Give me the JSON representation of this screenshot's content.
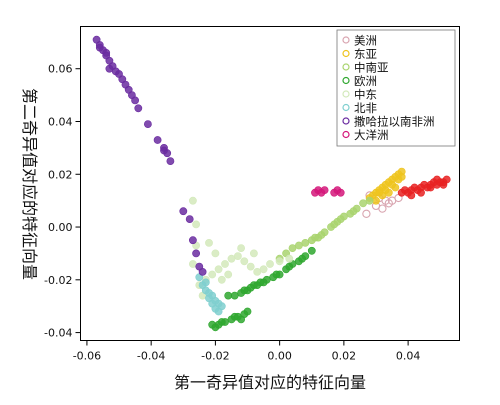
{
  "chart_data": {
    "type": "scatter",
    "xlabel": "第一奇异值对应的特征向量",
    "ylabel": "第二奇异值对应的特征向量",
    "xlim": [
      -0.062,
      0.056
    ],
    "ylim": [
      -0.043,
      0.076
    ],
    "x_ticks": [
      -0.06,
      -0.04,
      -0.02,
      0.0,
      0.02,
      0.04
    ],
    "x_tick_labels": [
      "-0.06",
      "-0.04",
      "-0.02",
      "0.00",
      "0.02",
      "0.04"
    ],
    "y_ticks": [
      -0.04,
      -0.02,
      0.0,
      0.02,
      0.04,
      0.06
    ],
    "y_tick_labels": [
      "-0.04",
      "-0.02",
      "0.00",
      "0.02",
      "0.04",
      "0.06"
    ],
    "grid": false,
    "legend_position": "top-right",
    "series": [
      {
        "name": "美洲",
        "color": "#d9a5b0",
        "marker": "open-circle",
        "points": [
          [
            0.028,
            0.012
          ],
          [
            0.031,
            0.011
          ],
          [
            0.033,
            0.01
          ],
          [
            0.035,
            0.01
          ],
          [
            0.037,
            0.011
          ],
          [
            0.03,
            0.008
          ],
          [
            0.027,
            0.005
          ],
          [
            0.034,
            0.009
          ],
          [
            0.032,
            0.007
          ]
        ]
      },
      {
        "name": "东亚",
        "color": "#eec41e",
        "marker": "filled-circle",
        "points": [
          [
            0.028,
            0.011
          ],
          [
            0.029,
            0.012
          ],
          [
            0.03,
            0.013
          ],
          [
            0.031,
            0.014
          ],
          [
            0.032,
            0.015
          ],
          [
            0.033,
            0.016
          ],
          [
            0.034,
            0.017
          ],
          [
            0.035,
            0.018
          ],
          [
            0.036,
            0.019
          ],
          [
            0.037,
            0.02
          ],
          [
            0.038,
            0.021
          ],
          [
            0.036,
            0.015
          ],
          [
            0.034,
            0.013
          ],
          [
            0.032,
            0.012
          ],
          [
            0.035,
            0.016
          ],
          [
            0.037,
            0.018
          ],
          [
            0.03,
            0.01
          ],
          [
            0.033,
            0.014
          ],
          [
            0.038,
            0.019
          ],
          [
            0.031,
            0.013
          ]
        ]
      },
      {
        "name": "中南亚",
        "color": "#a9d46e",
        "marker": "filled-circle",
        "points": [
          [
            0.0,
            -0.012
          ],
          [
            0.002,
            -0.01
          ],
          [
            0.004,
            -0.008
          ],
          [
            0.006,
            -0.007
          ],
          [
            0.008,
            -0.006
          ],
          [
            0.01,
            -0.005
          ],
          [
            0.012,
            -0.004
          ],
          [
            0.014,
            -0.002
          ],
          [
            0.016,
            0.0
          ],
          [
            0.018,
            0.002
          ],
          [
            0.02,
            0.004
          ],
          [
            0.022,
            0.005
          ],
          [
            0.024,
            0.007
          ],
          [
            0.026,
            0.009
          ],
          [
            0.028,
            0.01
          ],
          [
            0.013,
            -0.003
          ],
          [
            0.019,
            0.003
          ],
          [
            0.023,
            0.006
          ],
          [
            0.017,
            0.001
          ],
          [
            0.011,
            -0.004
          ]
        ]
      },
      {
        "name": "欧洲",
        "color": "#2fa72f",
        "marker": "filled-circle",
        "points": [
          [
            -0.021,
            -0.037
          ],
          [
            -0.019,
            -0.037
          ],
          [
            -0.017,
            -0.036
          ],
          [
            -0.015,
            -0.035
          ],
          [
            -0.013,
            -0.034
          ],
          [
            -0.011,
            -0.033
          ],
          [
            -0.01,
            -0.032
          ],
          [
            -0.014,
            -0.034
          ],
          [
            -0.018,
            -0.036
          ],
          [
            -0.016,
            -0.026
          ],
          [
            -0.014,
            -0.026
          ],
          [
            -0.012,
            -0.025
          ],
          [
            -0.01,
            -0.024
          ],
          [
            -0.008,
            -0.022
          ],
          [
            -0.006,
            -0.021
          ],
          [
            -0.004,
            -0.02
          ],
          [
            -0.002,
            -0.019
          ],
          [
            0.0,
            -0.018
          ],
          [
            0.002,
            -0.016
          ],
          [
            0.004,
            -0.014
          ],
          [
            0.006,
            -0.013
          ],
          [
            0.008,
            -0.011
          ],
          [
            0.01,
            -0.009
          ],
          [
            -0.005,
            -0.021
          ],
          [
            -0.009,
            -0.023
          ],
          [
            -0.001,
            -0.018
          ],
          [
            0.003,
            -0.015
          ],
          [
            0.007,
            -0.012
          ],
          [
            -0.012,
            -0.035
          ],
          [
            -0.02,
            -0.038
          ],
          [
            -0.011,
            -0.024
          ],
          [
            -0.007,
            -0.022
          ]
        ]
      },
      {
        "name": "中东",
        "color": "#d3e9bb",
        "marker": "filled-circle",
        "points": [
          [
            -0.025,
            -0.022
          ],
          [
            -0.023,
            -0.02
          ],
          [
            -0.021,
            -0.018
          ],
          [
            -0.019,
            -0.016
          ],
          [
            -0.017,
            -0.014
          ],
          [
            -0.015,
            -0.012
          ],
          [
            -0.013,
            -0.011
          ],
          [
            -0.011,
            -0.013
          ],
          [
            -0.009,
            -0.015
          ],
          [
            -0.007,
            -0.017
          ],
          [
            -0.005,
            -0.016
          ],
          [
            -0.003,
            -0.014
          ],
          [
            0.0,
            -0.013
          ],
          [
            0.003,
            -0.012
          ],
          [
            -0.027,
            -0.014
          ],
          [
            -0.026,
            -0.007
          ],
          [
            -0.026,
            0.001
          ],
          [
            -0.027,
            0.01
          ],
          [
            -0.022,
            -0.006
          ],
          [
            -0.02,
            -0.01
          ],
          [
            -0.018,
            -0.02
          ],
          [
            -0.016,
            -0.018
          ],
          [
            -0.024,
            -0.026
          ],
          [
            -0.012,
            -0.008
          ],
          [
            -0.008,
            -0.01
          ]
        ]
      },
      {
        "name": "北非",
        "color": "#7fcfcf",
        "marker": "filled-circle",
        "points": [
          [
            -0.025,
            -0.019
          ],
          [
            -0.024,
            -0.022
          ],
          [
            -0.023,
            -0.024
          ],
          [
            -0.022,
            -0.027
          ],
          [
            -0.021,
            -0.029
          ],
          [
            -0.02,
            -0.031
          ],
          [
            -0.019,
            -0.032
          ],
          [
            -0.022,
            -0.025
          ],
          [
            -0.02,
            -0.028
          ],
          [
            -0.018,
            -0.03
          ],
          [
            -0.023,
            -0.021
          ],
          [
            -0.021,
            -0.026
          ],
          [
            -0.019,
            -0.029
          ]
        ]
      },
      {
        "name": "撒哈拉以南非洲",
        "color": "#6a2ba0",
        "marker": "filled-circle",
        "points": [
          [
            -0.057,
            0.071
          ],
          [
            -0.056,
            0.069
          ],
          [
            -0.055,
            0.067
          ],
          [
            -0.054,
            0.065
          ],
          [
            -0.053,
            0.063
          ],
          [
            -0.052,
            0.061
          ],
          [
            -0.051,
            0.059
          ],
          [
            -0.05,
            0.058
          ],
          [
            -0.049,
            0.056
          ],
          [
            -0.048,
            0.054
          ],
          [
            -0.047,
            0.052
          ],
          [
            -0.046,
            0.05
          ],
          [
            -0.045,
            0.048
          ],
          [
            -0.044,
            0.045
          ],
          [
            -0.041,
            0.039
          ],
          [
            -0.038,
            0.033
          ],
          [
            -0.036,
            0.029
          ],
          [
            -0.034,
            0.025
          ],
          [
            -0.036,
            0.03
          ],
          [
            -0.035,
            0.028
          ],
          [
            -0.03,
            0.006
          ],
          [
            -0.028,
            0.003
          ],
          [
            -0.027,
            -0.005
          ],
          [
            -0.026,
            -0.01
          ],
          [
            -0.025,
            -0.015
          ],
          [
            -0.024,
            -0.017
          ],
          [
            -0.056,
            0.068
          ],
          [
            -0.054,
            0.066
          ],
          [
            -0.053,
            0.06
          ]
        ]
      },
      {
        "name": "大洋洲",
        "color": "#d4177a",
        "marker": "filled-circle",
        "points": [
          [
            0.011,
            0.013
          ],
          [
            0.012,
            0.014
          ],
          [
            0.013,
            0.013
          ],
          [
            0.014,
            0.014
          ],
          [
            0.017,
            0.013
          ],
          [
            0.018,
            0.014
          ],
          [
            0.019,
            0.013
          ]
        ]
      },
      {
        "name": "",
        "color": "#e82222",
        "marker": "filled-circle",
        "points": [
          [
            0.038,
            0.013
          ],
          [
            0.039,
            0.014
          ],
          [
            0.04,
            0.013
          ],
          [
            0.041,
            0.014
          ],
          [
            0.042,
            0.015
          ],
          [
            0.043,
            0.014
          ],
          [
            0.044,
            0.015
          ],
          [
            0.045,
            0.016
          ],
          [
            0.046,
            0.015
          ],
          [
            0.047,
            0.016
          ],
          [
            0.048,
            0.017
          ],
          [
            0.049,
            0.016
          ],
          [
            0.05,
            0.017
          ],
          [
            0.051,
            0.017
          ],
          [
            0.052,
            0.018
          ],
          [
            0.041,
            0.012
          ],
          [
            0.044,
            0.013
          ],
          [
            0.047,
            0.015
          ],
          [
            0.049,
            0.018
          ],
          [
            0.051,
            0.016
          ]
        ]
      }
    ]
  }
}
